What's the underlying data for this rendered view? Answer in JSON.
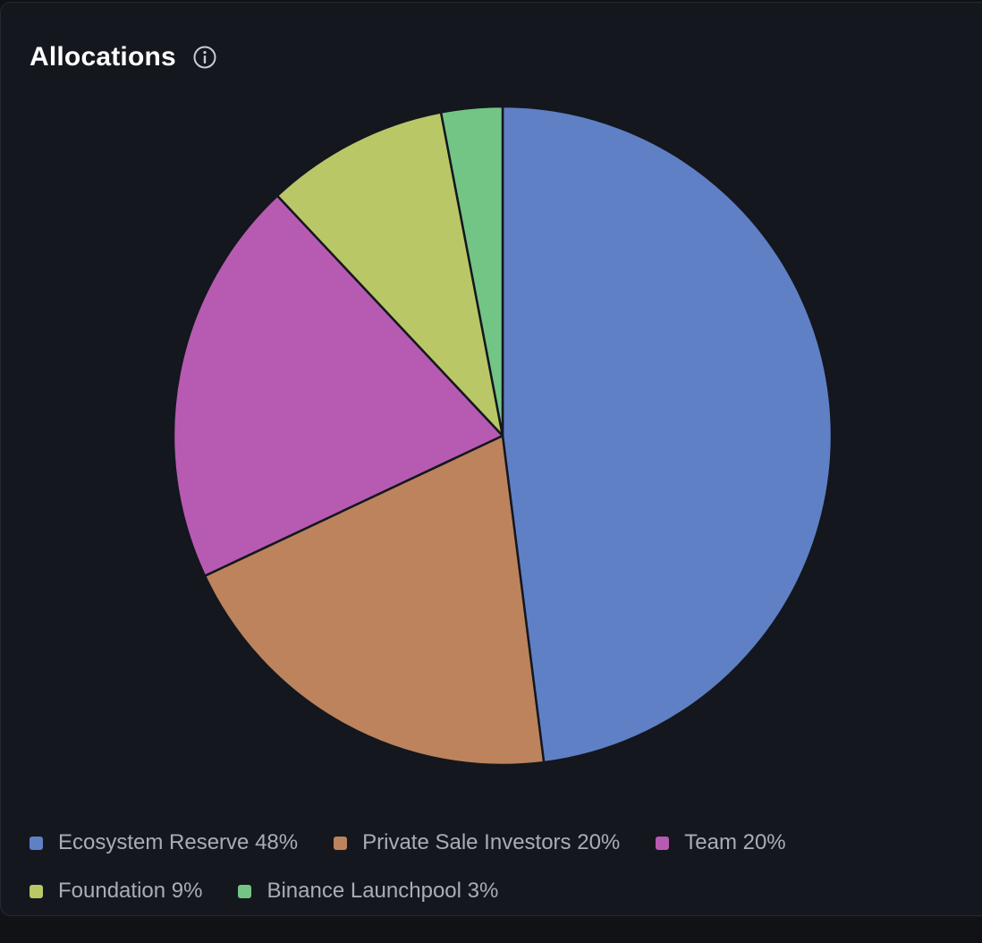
{
  "header": {
    "title": "Allocations",
    "info_icon": "info-circle-icon"
  },
  "chart_data": {
    "type": "pie",
    "title": "Allocations",
    "legend_position": "bottom",
    "series": [
      {
        "name": "Ecosystem Reserve",
        "value": 48,
        "label": "Ecosystem Reserve 48%",
        "color": "#5f80c5"
      },
      {
        "name": "Private Sale Investors",
        "value": 20,
        "label": "Private Sale Investors 20%",
        "color": "#bd835d"
      },
      {
        "name": "Team",
        "value": 20,
        "label": "Team 20%",
        "color": "#b75bb2"
      },
      {
        "name": "Foundation",
        "value": 9,
        "label": "Foundation 9%",
        "color": "#b9c767"
      },
      {
        "name": "Binance Launchpool",
        "value": 3,
        "label": "Binance Launchpool 3%",
        "color": "#73c586"
      }
    ]
  }
}
